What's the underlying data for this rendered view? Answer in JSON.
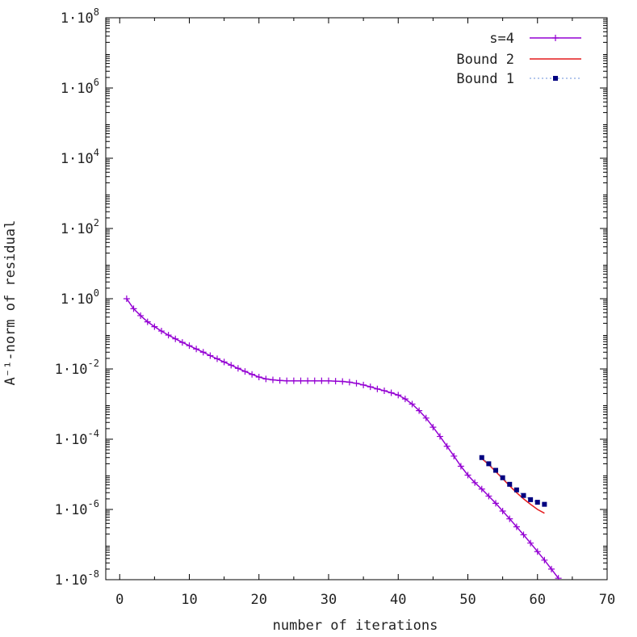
{
  "chart_data": {
    "type": "line",
    "xlabel": "number of iterations",
    "ylabel": "A⁻¹-norm of residual",
    "xlim": [
      -2,
      70
    ],
    "ylim": [
      1e-08,
      100000000.0
    ],
    "yscale": "log",
    "x_ticks": [
      0,
      10,
      20,
      30,
      40,
      50,
      60,
      70
    ],
    "y_ticks": [
      {
        "value": 100000000.0,
        "mantissa": "1·10",
        "exp": "8"
      },
      {
        "value": 1000000.0,
        "mantissa": "1·10",
        "exp": "6"
      },
      {
        "value": 10000.0,
        "mantissa": "1·10",
        "exp": "4"
      },
      {
        "value": 100.0,
        "mantissa": "1·10",
        "exp": "2"
      },
      {
        "value": 1.0,
        "mantissa": "1·10",
        "exp": "0"
      },
      {
        "value": 0.01,
        "mantissa": "1·10",
        "exp": "-2"
      },
      {
        "value": 0.0001,
        "mantissa": "1·10",
        "exp": "-4"
      },
      {
        "value": 1e-06,
        "mantissa": "1·10",
        "exp": "-6"
      },
      {
        "value": 1e-08,
        "mantissa": "1·10",
        "exp": "-8"
      }
    ],
    "grid": false,
    "legend_position": "top-right",
    "series": [
      {
        "name": "s=4",
        "color": "#9400d3",
        "style": "line-plus",
        "x": [
          1,
          2,
          3,
          4,
          5,
          6,
          7,
          8,
          9,
          10,
          11,
          12,
          13,
          14,
          15,
          16,
          17,
          18,
          19,
          20,
          21,
          22,
          23,
          24,
          25,
          26,
          27,
          28,
          29,
          30,
          31,
          32,
          33,
          34,
          35,
          36,
          37,
          38,
          39,
          40,
          41,
          42,
          43,
          44,
          45,
          46,
          47,
          48,
          49,
          50,
          51,
          52,
          53,
          54,
          55,
          56,
          57,
          58,
          59,
          60,
          61,
          62,
          63
        ],
        "y": [
          1.0,
          0.52,
          0.33,
          0.22,
          0.16,
          0.12,
          0.092,
          0.072,
          0.057,
          0.046,
          0.037,
          0.03,
          0.024,
          0.0195,
          0.0158,
          0.0128,
          0.0104,
          0.0085,
          0.007,
          0.0059,
          0.0052,
          0.0049,
          0.0047,
          0.0046,
          0.0046,
          0.0046,
          0.0046,
          0.0046,
          0.0046,
          0.0046,
          0.0045,
          0.0044,
          0.0042,
          0.0039,
          0.0035,
          0.0031,
          0.0027,
          0.0024,
          0.0021,
          0.0018,
          0.0014,
          0.001,
          0.00065,
          0.0004,
          0.00022,
          0.00012,
          6.3e-05,
          3.3e-05,
          1.7e-05,
          9.5e-06,
          5.8e-06,
          3.8e-06,
          2.4e-06,
          1.5e-06,
          9e-07,
          5.4e-07,
          3.2e-07,
          1.9e-07,
          1.1e-07,
          6.3e-08,
          3.6e-08,
          2e-08,
          1.1e-08
        ]
      },
      {
        "name": "Bound 2",
        "color": "#e41a1c",
        "style": "line",
        "x": [
          52,
          53,
          54,
          55,
          56,
          57,
          58,
          59,
          60,
          61
        ],
        "y": [
          2.8e-05,
          1.9e-05,
          1.2e-05,
          7.5e-06,
          4.7e-06,
          3e-06,
          2e-06,
          1.4e-06,
          1e-06,
          7.8e-07
        ]
      },
      {
        "name": "Bound 1",
        "color": "#000080",
        "line_color": "#6a8fd8",
        "style": "dotted-square",
        "x": [
          52,
          53,
          54,
          55,
          56,
          57,
          58,
          59,
          60,
          61
        ],
        "y": [
          3e-05,
          2e-05,
          1.3e-05,
          8e-06,
          5.2e-06,
          3.6e-06,
          2.5e-06,
          1.9e-06,
          1.6e-06,
          1.4e-06
        ]
      }
    ]
  }
}
